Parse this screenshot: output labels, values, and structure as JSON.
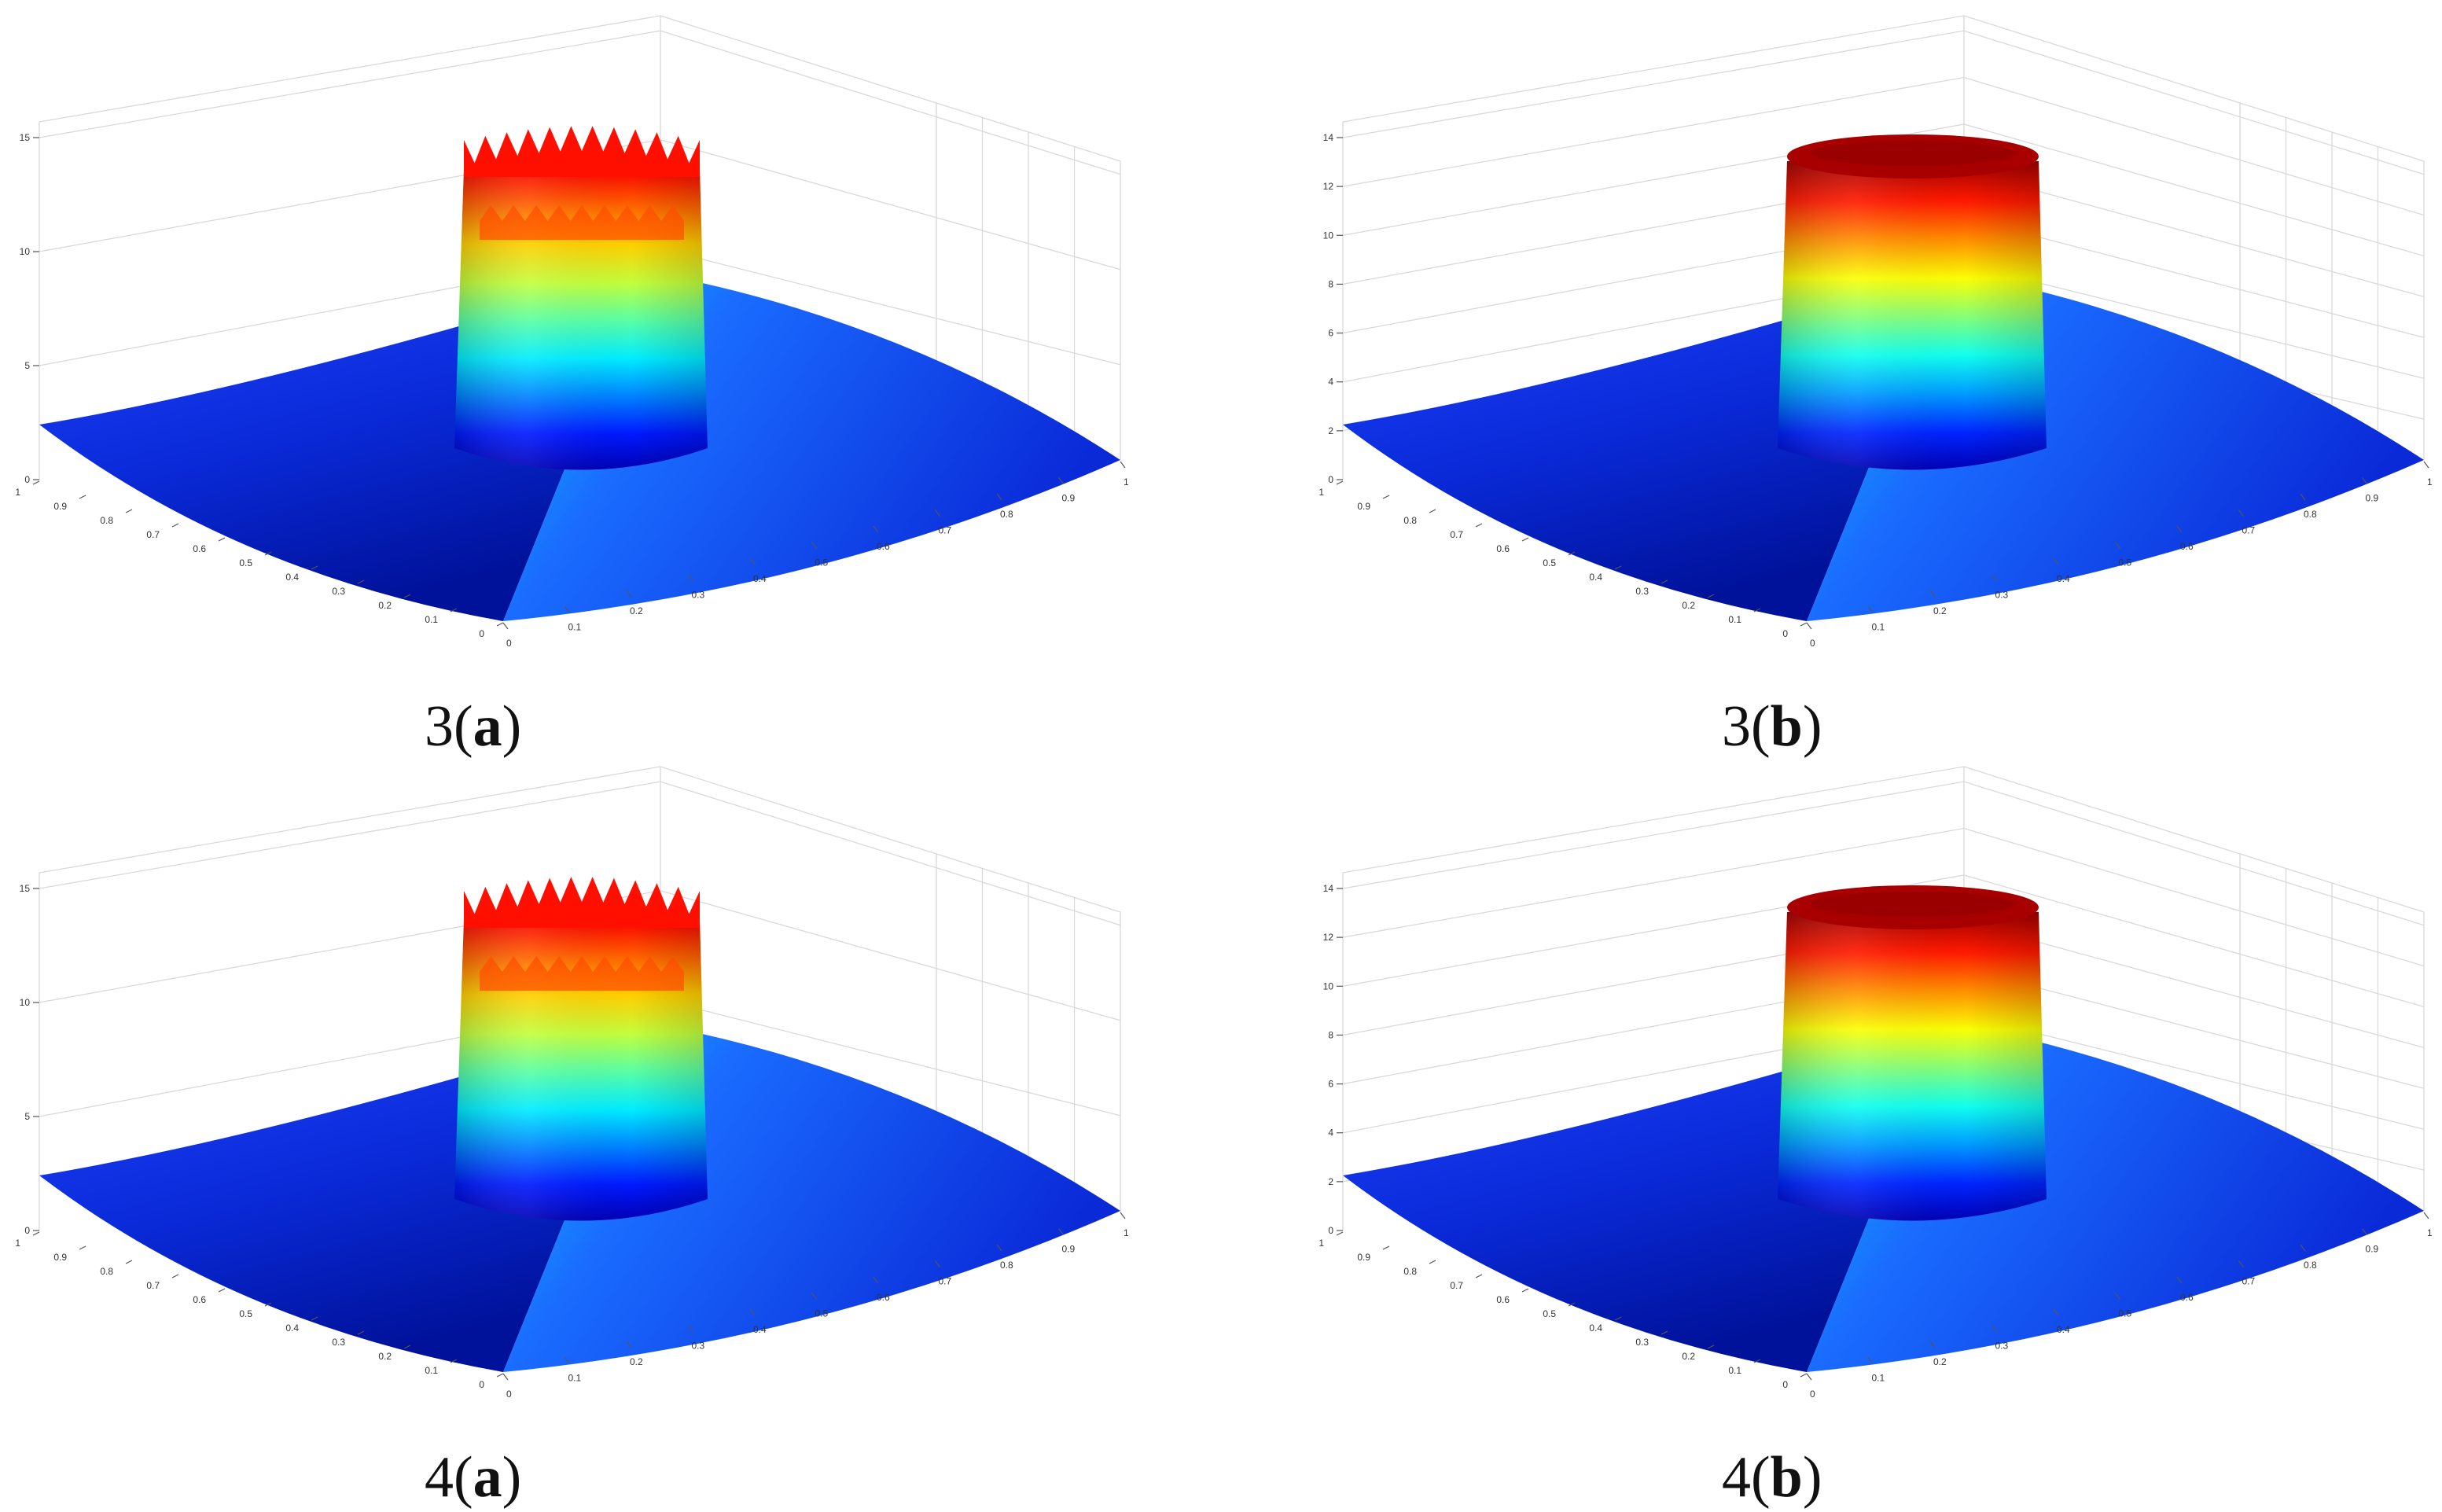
{
  "chart_data": [
    {
      "id": "3a",
      "type": "surface",
      "label_num": "3",
      "label_letter": "a",
      "x_ticks": [
        "0",
        "0.1",
        "0.2",
        "0.3",
        "0.4",
        "0.5",
        "0.6",
        "0.7",
        "0.8",
        "0.9",
        "1"
      ],
      "y_ticks": [
        "0",
        "0.1",
        "0.2",
        "0.3",
        "0.4",
        "0.5",
        "0.6",
        "0.7",
        "0.8",
        "0.9",
        "1"
      ],
      "z_ticks": [
        "0",
        "5",
        "10",
        "15"
      ],
      "zlim": [
        0,
        15
      ],
      "plateau_height": 13.5,
      "plateau_radius": 0.15,
      "plateau_center": [
        0.5,
        0.5
      ],
      "edge_height": 2.5,
      "rim": "oscillating",
      "colormap": "jet",
      "grid": true
    },
    {
      "id": "3b",
      "type": "surface",
      "label_num": "3",
      "label_letter": "b",
      "x_ticks": [
        "0",
        "0.1",
        "0.2",
        "0.3",
        "0.4",
        "0.5",
        "0.6",
        "0.7",
        "0.8",
        "0.9",
        "1"
      ],
      "y_ticks": [
        "0",
        "0.1",
        "0.2",
        "0.3",
        "0.4",
        "0.5",
        "0.6",
        "0.7",
        "0.8",
        "0.9",
        "1"
      ],
      "z_ticks": [
        "0",
        "2",
        "4",
        "6",
        "8",
        "10",
        "12",
        "14"
      ],
      "zlim": [
        0,
        14
      ],
      "plateau_height": 13,
      "plateau_radius": 0.15,
      "plateau_center": [
        0.5,
        0.5
      ],
      "edge_height": 2.3,
      "rim": "smooth",
      "colormap": "jet",
      "grid": true
    },
    {
      "id": "4a",
      "type": "surface",
      "label_num": "4",
      "label_letter": "a",
      "x_ticks": [
        "0",
        "0.1",
        "0.2",
        "0.3",
        "0.4",
        "0.5",
        "0.6",
        "0.7",
        "0.8",
        "0.9",
        "1"
      ],
      "y_ticks": [
        "0",
        "0.1",
        "0.2",
        "0.3",
        "0.4",
        "0.5",
        "0.6",
        "0.7",
        "0.8",
        "0.9",
        "1"
      ],
      "z_ticks": [
        "0",
        "5",
        "10",
        "15"
      ],
      "zlim": [
        0,
        15
      ],
      "plateau_height": 13.5,
      "plateau_radius": 0.15,
      "plateau_center": [
        0.5,
        0.5
      ],
      "edge_height": 2.5,
      "rim": "oscillating",
      "colormap": "jet",
      "grid": true
    },
    {
      "id": "4b",
      "type": "surface",
      "label_num": "4",
      "label_letter": "b",
      "x_ticks": [
        "0",
        "0.1",
        "0.2",
        "0.3",
        "0.4",
        "0.5",
        "0.6",
        "0.7",
        "0.8",
        "0.9",
        "1"
      ],
      "y_ticks": [
        "0",
        "0.1",
        "0.2",
        "0.3",
        "0.4",
        "0.5",
        "0.6",
        "0.7",
        "0.8",
        "0.9",
        "1"
      ],
      "z_ticks": [
        "0",
        "2",
        "4",
        "6",
        "8",
        "10",
        "12",
        "14"
      ],
      "zlim": [
        0,
        14
      ],
      "plateau_height": 13,
      "plateau_radius": 0.15,
      "plateau_center": [
        0.5,
        0.5
      ],
      "edge_height": 2.3,
      "rim": "smooth",
      "colormap": "jet",
      "grid": true
    }
  ]
}
